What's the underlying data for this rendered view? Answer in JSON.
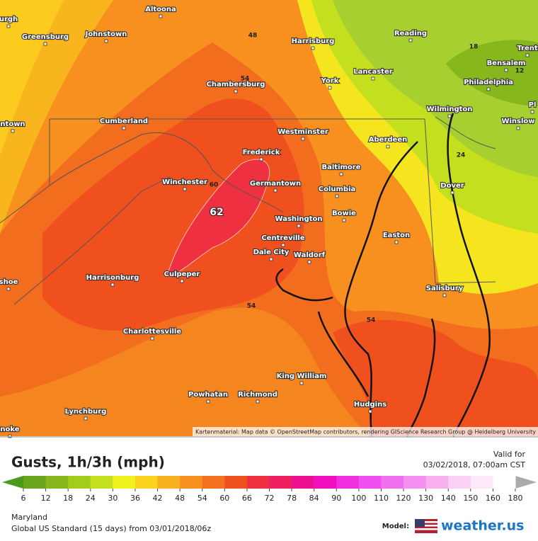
{
  "map": {
    "cities": [
      "urgh",
      "Greensburg",
      "Johnstown",
      "Altoona",
      "Harrisburg",
      "Reading",
      "Trent",
      "Bensalem",
      "Lancaster",
      "York",
      "Philadelphia",
      "Chambersburg",
      "Wilmington",
      "Cumberland",
      "ntown",
      "Winslow",
      "Westminster",
      "Aberdeen",
      "Frederick",
      "Baltimore",
      "Winchester",
      "Germantown",
      "Columbia",
      "Dover",
      "Bowie",
      "Washington",
      "Easton",
      "Centreville",
      "Dale City",
      "Waldorf",
      "Harrisonburg",
      "shoe",
      "Salisbury",
      "Culpeper",
      "Charlottesville",
      "King William",
      "Powhatan",
      "Richmond",
      "Hudgins",
      "Lynchburg",
      "noke",
      "Pl"
    ],
    "contour_labels": [
      48,
      54,
      60,
      62,
      18,
      12,
      24,
      54,
      54
    ],
    "attribution": "Kartenmaterial: Map data © OpenStreetMap contributors, rendering GIScience Research Group @ Heidelberg University"
  },
  "header": {
    "title": "Gusts, 1h/3h (mph)",
    "valid_label": "Valid for",
    "valid_time": "03/02/2018, 07:00am CST"
  },
  "legend": {
    "ticks": [
      6,
      12,
      18,
      24,
      30,
      36,
      42,
      48,
      54,
      60,
      66,
      72,
      78,
      84,
      90,
      100,
      110,
      120,
      130,
      140,
      150,
      160,
      180
    ],
    "colors": [
      "#6aa51e",
      "#86b81e",
      "#a4cc1e",
      "#c4df1e",
      "#f2f21e",
      "#fcd21e",
      "#f9b01e",
      "#f7901e",
      "#f3701e",
      "#f0501e",
      "#ee3040",
      "#ee2060",
      "#ee1090",
      "#f010c0",
      "#f030e0",
      "#f050f0",
      "#f070f0",
      "#f590f0",
      "#f8b0f0",
      "#fad0f5",
      "#fde8fa",
      "#ffffff"
    ],
    "below_color": "#4a9a1e",
    "above_color": "#aaaaaa"
  },
  "footer": {
    "region": "Maryland",
    "model_run": "Global US Standard (15 days) from 03/01/2018/06z",
    "model_label": "Model:",
    "brand": "weather.us"
  }
}
